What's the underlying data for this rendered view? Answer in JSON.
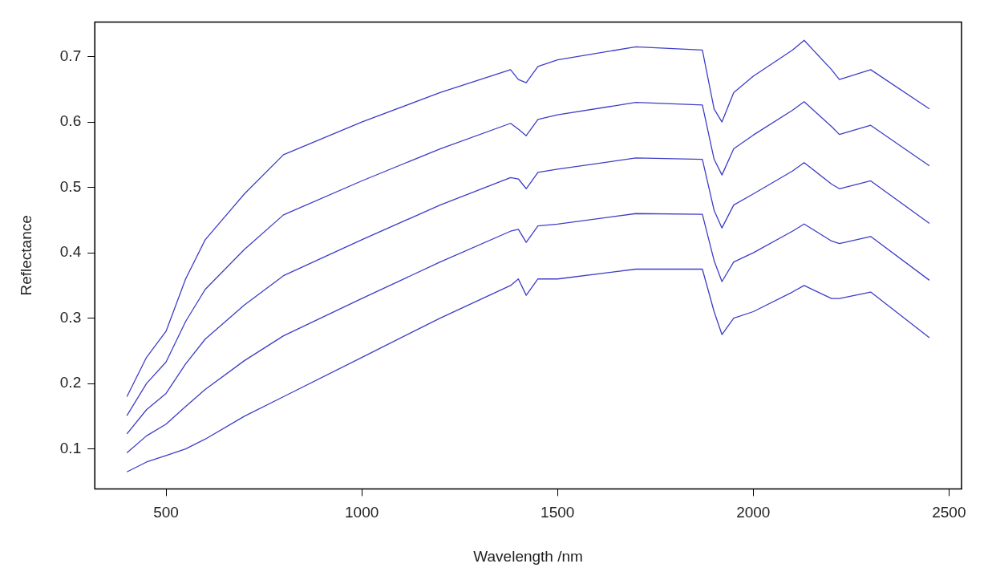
{
  "chart_data": {
    "type": "line",
    "xlabel": "Wavelength /nm",
    "ylabel": "Reflectance",
    "x": [
      400,
      450,
      500,
      550,
      600,
      700,
      800,
      1000,
      1200,
      1380,
      1400,
      1420,
      1450,
      1500,
      1700,
      1870,
      1900,
      1920,
      1950,
      2000,
      2100,
      2130,
      2200,
      2220,
      2300,
      2450
    ],
    "series": [
      {
        "color": "#3d3dc8",
        "values": [
          0.18,
          0.24,
          0.28,
          0.36,
          0.42,
          0.49,
          0.55,
          0.6,
          0.645,
          0.68,
          0.665,
          0.66,
          0.685,
          0.695,
          0.715,
          0.71,
          0.62,
          0.6,
          0.645,
          0.67,
          0.71,
          0.725,
          0.68,
          0.665,
          0.68,
          0.62
        ]
      },
      {
        "color": "#3d3dc8",
        "values": [
          0.151,
          0.2,
          0.233,
          0.295,
          0.344,
          0.405,
          0.458,
          0.51,
          0.559,
          0.598,
          0.589,
          0.579,
          0.604,
          0.611,
          0.63,
          0.626,
          0.543,
          0.519,
          0.559,
          0.58,
          0.618,
          0.631,
          0.593,
          0.581,
          0.595,
          0.533
        ]
      },
      {
        "color": "#3d3dc8",
        "values": [
          0.123,
          0.16,
          0.185,
          0.23,
          0.268,
          0.32,
          0.365,
          0.42,
          0.473,
          0.515,
          0.513,
          0.498,
          0.523,
          0.528,
          0.545,
          0.543,
          0.465,
          0.438,
          0.473,
          0.49,
          0.525,
          0.538,
          0.505,
          0.498,
          0.51,
          0.445
        ]
      },
      {
        "color": "#3d3dc8",
        "values": [
          0.094,
          0.12,
          0.138,
          0.165,
          0.191,
          0.235,
          0.273,
          0.33,
          0.386,
          0.433,
          0.436,
          0.416,
          0.441,
          0.444,
          0.46,
          0.459,
          0.388,
          0.356,
          0.386,
          0.4,
          0.433,
          0.444,
          0.418,
          0.414,
          0.425,
          0.358
        ]
      },
      {
        "color": "#3d3dc8",
        "values": [
          0.065,
          0.08,
          0.09,
          0.1,
          0.115,
          0.15,
          0.18,
          0.24,
          0.3,
          0.35,
          0.36,
          0.335,
          0.36,
          0.36,
          0.375,
          0.375,
          0.31,
          0.275,
          0.3,
          0.31,
          0.34,
          0.35,
          0.33,
          0.33,
          0.34,
          0.27
        ]
      }
    ],
    "xlim": [
      318,
      2532
    ],
    "ylim": [
      0.039,
      0.753
    ],
    "xticks": [
      500,
      1000,
      1500,
      2000,
      2500
    ],
    "yticks": [
      0.1,
      0.2,
      0.3,
      0.4,
      0.5,
      0.6,
      0.7
    ],
    "grid": false,
    "legend": false,
    "marker": "none",
    "line_style": "solid"
  }
}
